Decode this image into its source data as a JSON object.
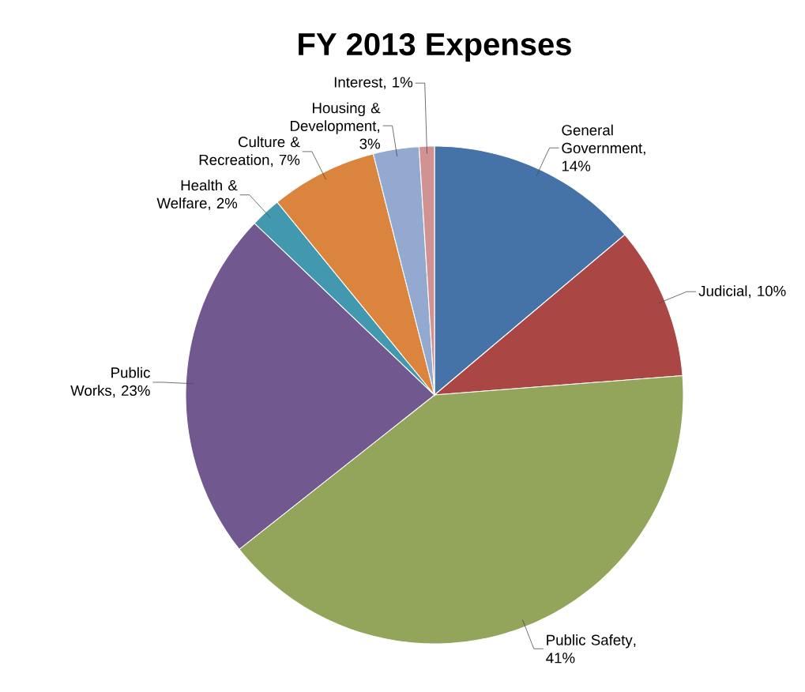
{
  "chart_data": {
    "type": "pie",
    "title": "FY 2013 Expenses",
    "categories": [
      "General Government",
      "Judicial",
      "Public Safety",
      "Public Works",
      "Health & Welfare",
      "Culture & Recreation",
      "Housing & Development",
      "Interest"
    ],
    "values": [
      14,
      10,
      41,
      23,
      2,
      7,
      3,
      1
    ],
    "value_labels": [
      ", 14%",
      ", 10%",
      ", 41%",
      ", 23%",
      ", 2%",
      ", 7%",
      ", 3%",
      ", 1%"
    ],
    "colors": [
      "#4572a7",
      "#aa4643",
      "#93a55a",
      "#71588f",
      "#4198af",
      "#db843d",
      "#93a9cf",
      "#d19392"
    ]
  }
}
